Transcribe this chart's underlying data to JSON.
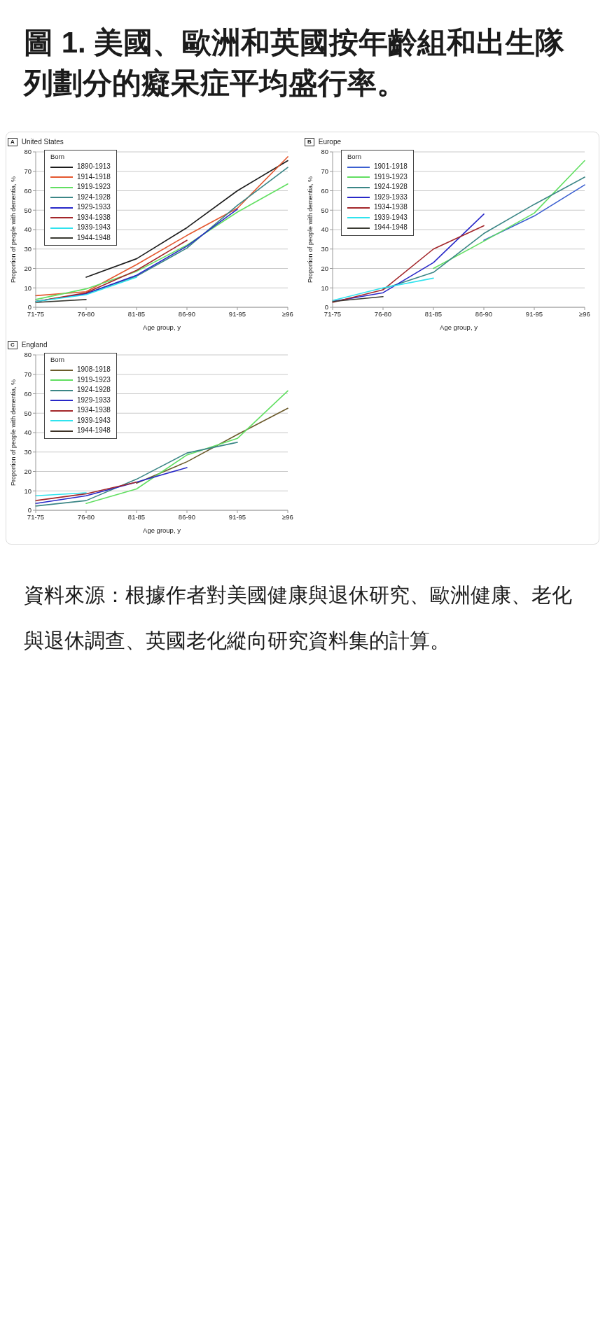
{
  "chart_data": [
    {
      "type": "line",
      "title": "United States",
      "xlabel": "Age group, y",
      "ylabel": "Proportion of people with dementia, %",
      "legend_title": "Born",
      "annotations": [
        "A",
        "圖 1. 美國、歐洲和英國按年齡組和出生隊列劃分的癡呆症平均盛行率。"
      ],
      "categories": [
        "71-75",
        "76-80",
        "81-85",
        "86-90",
        "91-95",
        "≥96"
      ],
      "ylim": [
        0,
        80
      ],
      "yticks": [
        0,
        10,
        20,
        30,
        40,
        50,
        60,
        70,
        80
      ],
      "grid": "y",
      "legend": "top left",
      "marker": "none",
      "line_style": "solid",
      "series": [
        {
          "name": "1890-1913",
          "color": "#1c1c1c",
          "values": [
            null,
            15.5,
            25,
            41,
            60,
            75.5
          ]
        },
        {
          "name": "1914-1918",
          "color": "#e4572e",
          "values": [
            6,
            8,
            22,
            37,
            51,
            77.5
          ]
        },
        {
          "name": "1919-1923",
          "color": "#62df62",
          "values": [
            4,
            9.5,
            18.5,
            32,
            49,
            63.5
          ]
        },
        {
          "name": "1924-1928",
          "color": "#3b8686",
          "values": [
            3,
            7,
            16,
            30.5,
            52.5,
            72
          ]
        },
        {
          "name": "1929-1933",
          "color": "#2828c8",
          "values": [
            3,
            7,
            16.5,
            31.5,
            50.5,
            null
          ]
        },
        {
          "name": "1934-1938",
          "color": "#a3262a",
          "values": [
            3,
            7.5,
            19,
            34.5,
            null,
            null
          ]
        },
        {
          "name": "1939-1943",
          "color": "#2fe3ee",
          "values": [
            3,
            6.5,
            15.5,
            null,
            null,
            null
          ]
        },
        {
          "name": "1944-1948",
          "color": "#3a3a32",
          "values": [
            2.5,
            4,
            null,
            null,
            null,
            null
          ]
        }
      ]
    },
    {
      "type": "line",
      "title": "Europe",
      "xlabel": "Age group, y",
      "ylabel": "Proportion of people with dementia, %",
      "legend_title": "Born",
      "annotations": [
        "B"
      ],
      "categories": [
        "71-75",
        "76-80",
        "81-85",
        "86-90",
        "91-95",
        "≥96"
      ],
      "ylim": [
        0,
        80
      ],
      "yticks": [
        0,
        10,
        20,
        30,
        40,
        50,
        60,
        70,
        80
      ],
      "grid": "y",
      "legend": "top left",
      "marker": "none",
      "line_style": "solid",
      "series": [
        {
          "name": "1901-1918",
          "color": "#3b5fd0",
          "values": [
            null,
            null,
            null,
            34.5,
            47,
            63
          ]
        },
        {
          "name": "1919-1923",
          "color": "#62df62",
          "values": [
            null,
            null,
            20,
            34,
            48.5,
            75.5
          ]
        },
        {
          "name": "1924-1928",
          "color": "#3b8686",
          "values": [
            null,
            9.5,
            18,
            38,
            53,
            67
          ]
        },
        {
          "name": "1929-1933",
          "color": "#2828c8",
          "values": [
            3,
            7.5,
            23,
            48,
            null,
            null
          ]
        },
        {
          "name": "1934-1938",
          "color": "#a3262a",
          "values": [
            2.5,
            9,
            30,
            42,
            null,
            null
          ]
        },
        {
          "name": "1939-1943",
          "color": "#2fe3ee",
          "values": [
            3.5,
            10,
            15,
            null,
            null,
            null
          ]
        },
        {
          "name": "1944-1948",
          "color": "#3a3a32",
          "values": [
            3,
            5.5,
            null,
            null,
            null,
            null
          ]
        }
      ]
    },
    {
      "type": "line",
      "title": "England",
      "xlabel": "Age group, y",
      "ylabel": "Proportion of people with dementia, %",
      "legend_title": "Born",
      "annotations": [
        "C",
        "資料來源：根據作者對美國健康與退休研究、歐洲健康、老化與退休調查、英國老化縱向研究資料集的計算。"
      ],
      "categories": [
        "71-75",
        "76-80",
        "81-85",
        "86-90",
        "91-95",
        "≥96"
      ],
      "ylim": [
        0,
        80
      ],
      "yticks": [
        0,
        10,
        20,
        30,
        40,
        50,
        60,
        70,
        80
      ],
      "grid": "y",
      "legend": "top left",
      "marker": "none",
      "line_style": "solid",
      "series": [
        {
          "name": "1908-1918",
          "color": "#6b5a2b",
          "values": [
            null,
            null,
            14,
            25,
            39,
            52.5
          ]
        },
        {
          "name": "1919-1923",
          "color": "#62df62",
          "values": [
            null,
            3.5,
            11,
            28.5,
            37,
            61.5
          ]
        },
        {
          "name": "1924-1928",
          "color": "#3b8686",
          "values": [
            2.2,
            5,
            16,
            29.5,
            35,
            null
          ]
        },
        {
          "name": "1929-1933",
          "color": "#2828c8",
          "values": [
            3.5,
            7.5,
            14.5,
            22,
            null,
            null
          ]
        },
        {
          "name": "1934-1938",
          "color": "#a3262a",
          "values": [
            5,
            8.5,
            14.5,
            null,
            null,
            null
          ]
        },
        {
          "name": "1939-1943",
          "color": "#2fe3ee",
          "values": [
            7.5,
            9,
            null,
            null,
            null,
            null
          ]
        },
        {
          "name": "1944-1948",
          "color": "#3d3226",
          "values": [
            null,
            null,
            null,
            null,
            null,
            null
          ]
        }
      ]
    }
  ]
}
